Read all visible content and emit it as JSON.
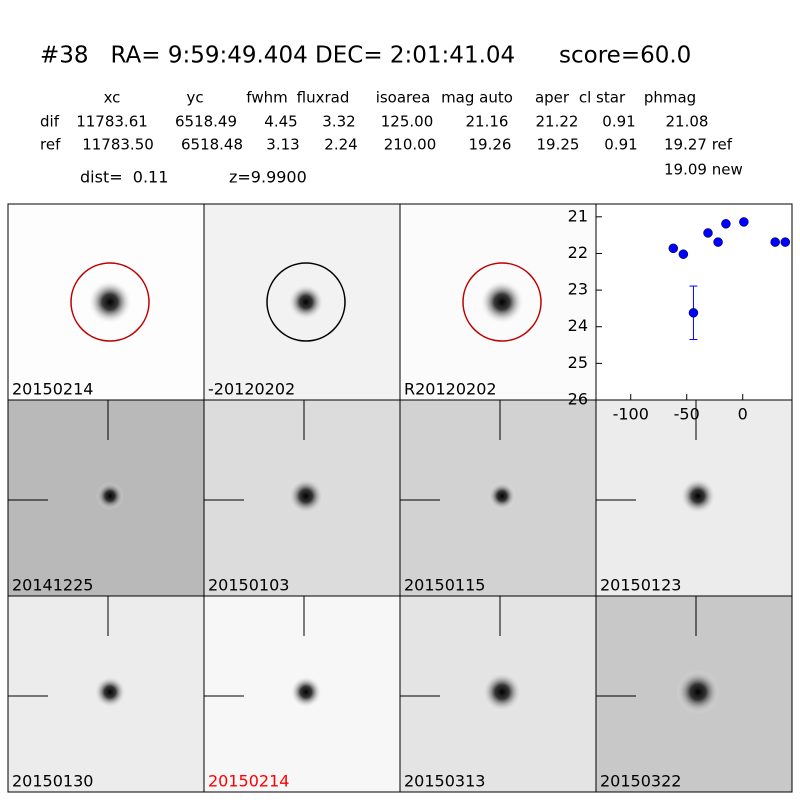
{
  "header": {
    "title": "#38   RA= 9:59:49.404 DEC= 2:01:41.04      score=60.0"
  },
  "table": {
    "columns": [
      "xc",
      "yc",
      "fwhm",
      "fluxrad",
      "isoarea",
      "mag auto",
      "aper",
      "cl star",
      "phmag"
    ],
    "rows": [
      [
        "dif",
        "11783.61",
        "6518.49",
        "4.45",
        "3.32",
        "125.00",
        "21.16",
        "21.22",
        "0.91",
        "21.08"
      ],
      [
        "ref",
        "11783.50",
        "6518.48",
        "3.13",
        "2.24",
        "210.00",
        "19.26",
        "19.25",
        "0.91",
        "19.27 ref"
      ]
    ],
    "extra": "19.09 new"
  },
  "info": {
    "dist": "dist=  0.11",
    "z": "z=9.9900"
  },
  "stamps": [
    "20150214",
    "-20120202",
    "R20120202",
    "20141225",
    "20150103",
    "20150115",
    "20150123",
    "20150130",
    "20150214",
    "20150313",
    "20150322"
  ],
  "chart_data": {
    "type": "scatter",
    "color": "#0000ff",
    "x": [
      -62,
      -53,
      -44,
      -31,
      -22,
      -15,
      1,
      29,
      38
    ],
    "values": [
      21.86,
      22.02,
      23.62,
      21.44,
      21.69,
      21.19,
      21.14,
      21.69,
      21.69
    ],
    "errors": [
      null,
      null,
      0.73,
      null,
      null,
      null,
      null,
      null,
      null
    ],
    "xlim": [
      -131,
      44
    ],
    "xticks": [
      -100,
      -50,
      0
    ],
    "ylim": [
      26,
      20.65
    ],
    "yticks": [
      21,
      22,
      23,
      24,
      25,
      26
    ]
  }
}
